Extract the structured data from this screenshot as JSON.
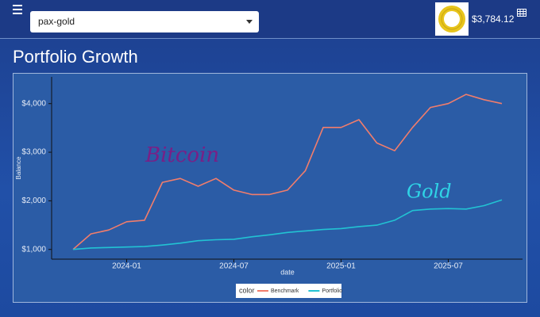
{
  "header": {
    "selected": "pax-gold",
    "price": "$3,784.12"
  },
  "page_title": "Portfolio Growth",
  "chart_data": {
    "type": "line",
    "x": [
      "2023-10",
      "2023-11",
      "2023-12",
      "2024-01",
      "2024-02",
      "2024-03",
      "2024-04",
      "2024-05",
      "2024-06",
      "2024-07",
      "2024-08",
      "2024-09",
      "2024-10",
      "2024-11",
      "2024-12",
      "2025-01",
      "2025-02",
      "2025-03",
      "2025-04",
      "2025-05",
      "2025-06",
      "2025-07",
      "2025-08",
      "2025-09",
      "2025-10"
    ],
    "series": [
      {
        "name": "Benchmark",
        "color": "#f27d6b",
        "values": [
          1000,
          1320,
          1400,
          1570,
          1600,
          2380,
          2460,
          2300,
          2460,
          2220,
          2130,
          2130,
          2220,
          2620,
          3510,
          3510,
          3670,
          3190,
          3030,
          3510,
          3920,
          4000,
          4190,
          4080,
          4000
        ]
      },
      {
        "name": "Portfolio",
        "color": "#22c3d3",
        "values": [
          1000,
          1030,
          1040,
          1050,
          1060,
          1090,
          1130,
          1180,
          1200,
          1210,
          1260,
          1300,
          1350,
          1380,
          1410,
          1430,
          1470,
          1500,
          1600,
          1800,
          1830,
          1840,
          1830,
          1900,
          2020
        ]
      }
    ],
    "xlim": [
      "2023-10",
      "2025-10"
    ],
    "xticks": [
      "2024-01",
      "2024-07",
      "2025-01",
      "2025-07"
    ],
    "ylim": [
      800,
      4550
    ],
    "yticks": [
      {
        "value": 1000,
        "label": "$1,000"
      },
      {
        "value": 2000,
        "label": "$2,000"
      },
      {
        "value": 3000,
        "label": "$3,000"
      },
      {
        "value": 4000,
        "label": "$4,000"
      }
    ],
    "xlabel": "date",
    "ylabel": "Balance",
    "legend_title": "color",
    "legend": "bottom",
    "grid": false,
    "annotations": [
      {
        "text": "Bitcoin",
        "color": "#7a1f86"
      },
      {
        "text": "Gold",
        "color": "#2fd4e6"
      }
    ]
  }
}
